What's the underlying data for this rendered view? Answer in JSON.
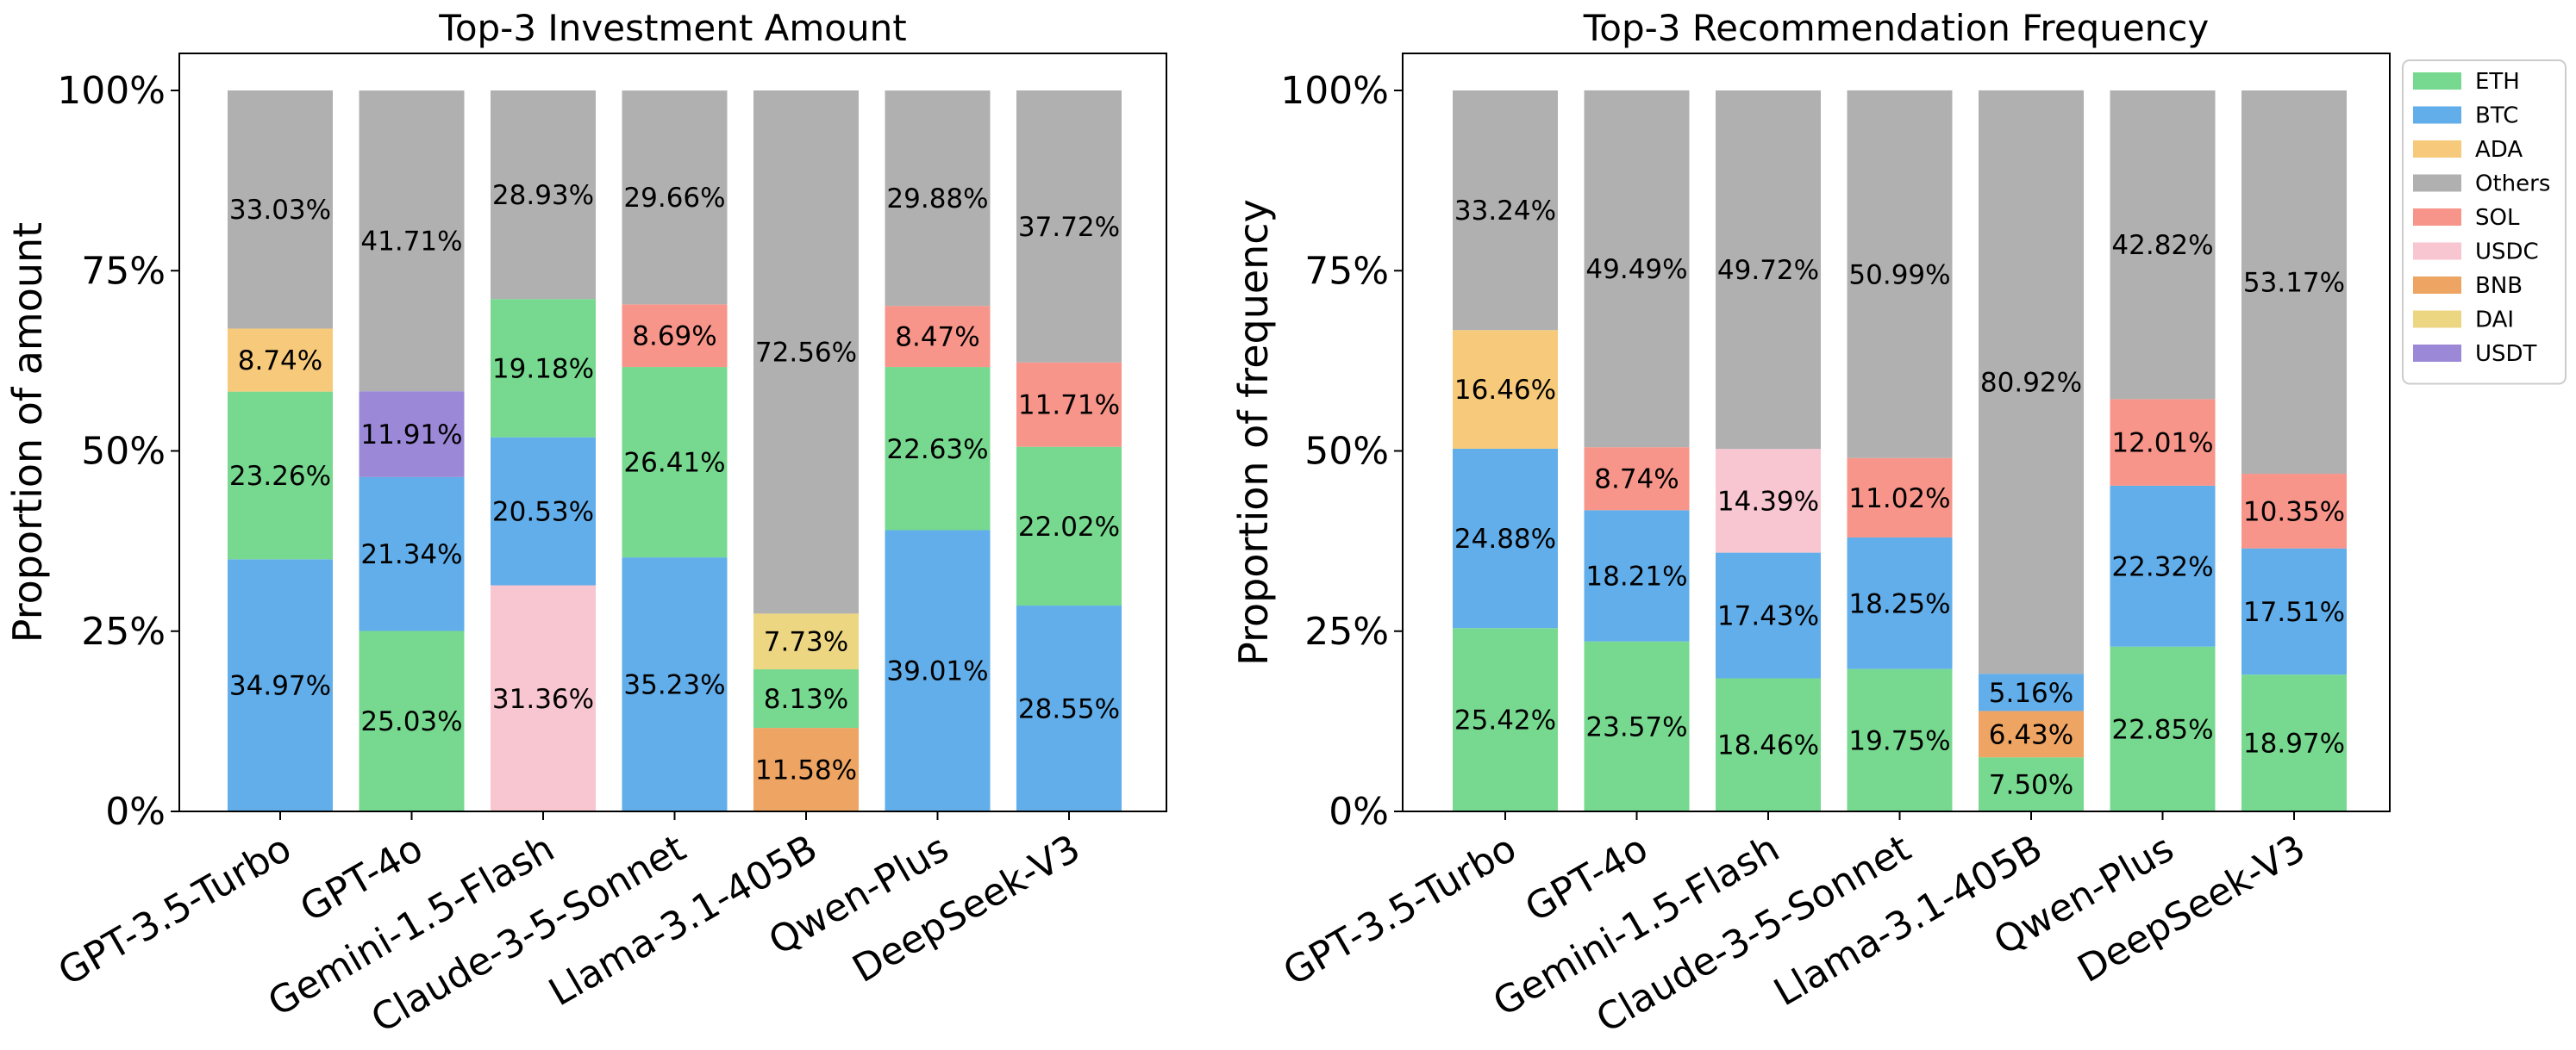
{
  "chart_data": [
    {
      "type": "bar",
      "stacked": true,
      "title": "Top-3 Investment Amount",
      "xlabel": "",
      "ylabel": "Proportion of amount",
      "ylim": [
        0,
        100
      ],
      "yticks": [
        "0%",
        "25%",
        "50%",
        "75%",
        "100%"
      ],
      "categories": [
        "GPT-3.5-Turbo",
        "GPT-4o",
        "Gemini-1.5-Flash",
        "Claude-3-5-Sonnet",
        "Llama-3.1-405B",
        "Qwen-Plus",
        "DeepSeek-V3"
      ],
      "stacks": [
        [
          {
            "s": "BTC",
            "v": 34.97,
            "label": "34.97%"
          },
          {
            "s": "ETH",
            "v": 23.26,
            "label": "23.26%"
          },
          {
            "s": "ADA",
            "v": 8.74,
            "label": "8.74%"
          },
          {
            "s": "Others",
            "v": 33.03,
            "label": "33.03%"
          }
        ],
        [
          {
            "s": "ETH",
            "v": 25.03,
            "label": "25.03%"
          },
          {
            "s": "BTC",
            "v": 21.34,
            "label": "21.34%"
          },
          {
            "s": "USDT",
            "v": 11.91,
            "label": "11.91%"
          },
          {
            "s": "Others",
            "v": 41.71,
            "label": "41.71%"
          }
        ],
        [
          {
            "s": "USDC",
            "v": 31.36,
            "label": "31.36%"
          },
          {
            "s": "BTC",
            "v": 20.53,
            "label": "20.53%"
          },
          {
            "s": "ETH",
            "v": 19.18,
            "label": "19.18%"
          },
          {
            "s": "Others",
            "v": 28.93,
            "label": "28.93%"
          }
        ],
        [
          {
            "s": "BTC",
            "v": 35.23,
            "label": "35.23%"
          },
          {
            "s": "ETH",
            "v": 26.41,
            "label": "26.41%"
          },
          {
            "s": "SOL",
            "v": 8.69,
            "label": "8.69%"
          },
          {
            "s": "Others",
            "v": 29.66,
            "label": "29.66%"
          }
        ],
        [
          {
            "s": "BNB",
            "v": 11.58,
            "label": "11.58%"
          },
          {
            "s": "ETH",
            "v": 8.13,
            "label": "8.13%"
          },
          {
            "s": "DAI",
            "v": 7.73,
            "label": "7.73%"
          },
          {
            "s": "Others",
            "v": 72.56,
            "label": "72.56%"
          }
        ],
        [
          {
            "s": "BTC",
            "v": 39.01,
            "label": "39.01%"
          },
          {
            "s": "ETH",
            "v": 22.63,
            "label": "22.63%"
          },
          {
            "s": "SOL",
            "v": 8.47,
            "label": "8.47%"
          },
          {
            "s": "Others",
            "v": 29.88,
            "label": "29.88%"
          }
        ],
        [
          {
            "s": "BTC",
            "v": 28.55,
            "label": "28.55%"
          },
          {
            "s": "ETH",
            "v": 22.02,
            "label": "22.02%"
          },
          {
            "s": "SOL",
            "v": 11.71,
            "label": "11.71%"
          },
          {
            "s": "Others",
            "v": 37.72,
            "label": "37.72%"
          }
        ]
      ]
    },
    {
      "type": "bar",
      "stacked": true,
      "title": "Top-3 Recommendation Frequency",
      "xlabel": "",
      "ylabel": "Proportion of frequency",
      "ylim": [
        0,
        100
      ],
      "yticks": [
        "0%",
        "25%",
        "50%",
        "75%",
        "100%"
      ],
      "categories": [
        "GPT-3.5-Turbo",
        "GPT-4o",
        "Gemini-1.5-Flash",
        "Claude-3-5-Sonnet",
        "Llama-3.1-405B",
        "Qwen-Plus",
        "DeepSeek-V3"
      ],
      "stacks": [
        [
          {
            "s": "ETH",
            "v": 25.42,
            "label": "25.42%"
          },
          {
            "s": "BTC",
            "v": 24.88,
            "label": "24.88%"
          },
          {
            "s": "ADA",
            "v": 16.46,
            "label": "16.46%"
          },
          {
            "s": "Others",
            "v": 33.24,
            "label": "33.24%"
          }
        ],
        [
          {
            "s": "ETH",
            "v": 23.57,
            "label": "23.57%"
          },
          {
            "s": "BTC",
            "v": 18.21,
            "label": "18.21%"
          },
          {
            "s": "SOL",
            "v": 8.74,
            "label": "8.74%"
          },
          {
            "s": "Others",
            "v": 49.49,
            "label": "49.49%"
          }
        ],
        [
          {
            "s": "ETH",
            "v": 18.46,
            "label": "18.46%"
          },
          {
            "s": "BTC",
            "v": 17.43,
            "label": "17.43%"
          },
          {
            "s": "USDC",
            "v": 14.39,
            "label": "14.39%"
          },
          {
            "s": "Others",
            "v": 49.72,
            "label": "49.72%"
          }
        ],
        [
          {
            "s": "ETH",
            "v": 19.75,
            "label": "19.75%"
          },
          {
            "s": "BTC",
            "v": 18.25,
            "label": "18.25%"
          },
          {
            "s": "SOL",
            "v": 11.02,
            "label": "11.02%"
          },
          {
            "s": "Others",
            "v": 50.99,
            "label": "50.99%"
          }
        ],
        [
          {
            "s": "ETH",
            "v": 7.5,
            "label": "7.50%"
          },
          {
            "s": "BNB",
            "v": 6.43,
            "label": "6.43%"
          },
          {
            "s": "BTC",
            "v": 5.16,
            "label": "5.16%"
          },
          {
            "s": "Others",
            "v": 80.92,
            "label": "80.92%"
          }
        ],
        [
          {
            "s": "ETH",
            "v": 22.85,
            "label": "22.85%"
          },
          {
            "s": "BTC",
            "v": 22.32,
            "label": "22.32%"
          },
          {
            "s": "SOL",
            "v": 12.01,
            "label": "12.01%"
          },
          {
            "s": "Others",
            "v": 42.82,
            "label": "42.82%"
          }
        ],
        [
          {
            "s": "ETH",
            "v": 18.97,
            "label": "18.97%"
          },
          {
            "s": "BTC",
            "v": 17.51,
            "label": "17.51%"
          },
          {
            "s": "SOL",
            "v": 10.35,
            "label": "10.35%"
          },
          {
            "s": "Others",
            "v": 53.17,
            "label": "53.17%"
          }
        ]
      ]
    }
  ],
  "legend": {
    "placement": "right",
    "items": [
      "ETH",
      "BTC",
      "ADA",
      "Others",
      "SOL",
      "USDC",
      "BNB",
      "DAI",
      "USDT"
    ]
  },
  "colors": {
    "ETH": "#77d98f",
    "BTC": "#62aeea",
    "ADA": "#f7c97a",
    "Others": "#b0b0b0",
    "SOL": "#f7958a",
    "USDC": "#f7c6d0",
    "BNB": "#eea462",
    "DAI": "#ecd682",
    "USDT": "#9b88d6"
  }
}
